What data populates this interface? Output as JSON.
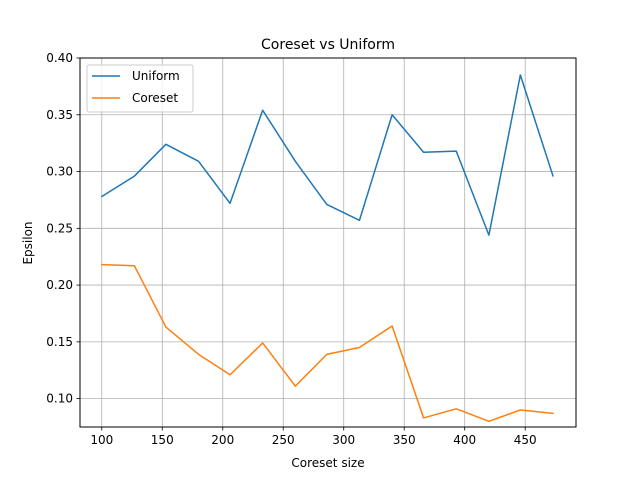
{
  "chart_data": {
    "type": "line",
    "title": "Coreset vs Uniform",
    "xlabel": "Coreset size",
    "ylabel": "Epsilon",
    "xlim": [
      82,
      492
    ],
    "ylim": [
      0.075,
      0.4
    ],
    "xticks": [
      100,
      150,
      200,
      250,
      300,
      350,
      400,
      450
    ],
    "yticks": [
      0.1,
      0.15,
      0.2,
      0.25,
      0.3,
      0.35,
      0.4
    ],
    "ytick_labels": [
      "0.10",
      "0.15",
      "0.20",
      "0.25",
      "0.30",
      "0.35",
      "0.40"
    ],
    "grid": true,
    "legend_position": "upper-left",
    "x": [
      100,
      127,
      153,
      180,
      206,
      233,
      260,
      286,
      313,
      340,
      366,
      393,
      420,
      446,
      473
    ],
    "series": [
      {
        "name": "Uniform",
        "color": "#1f77b4",
        "values": [
          0.278,
          0.296,
          0.324,
          0.309,
          0.272,
          0.354,
          0.309,
          0.271,
          0.257,
          0.35,
          0.317,
          0.318,
          0.244,
          0.385,
          0.296
        ]
      },
      {
        "name": "Coreset",
        "color": "#ff7f0e",
        "values": [
          0.218,
          0.217,
          0.163,
          0.139,
          0.121,
          0.149,
          0.111,
          0.139,
          0.145,
          0.164,
          0.083,
          0.091,
          0.08,
          0.09,
          0.087
        ]
      }
    ]
  }
}
